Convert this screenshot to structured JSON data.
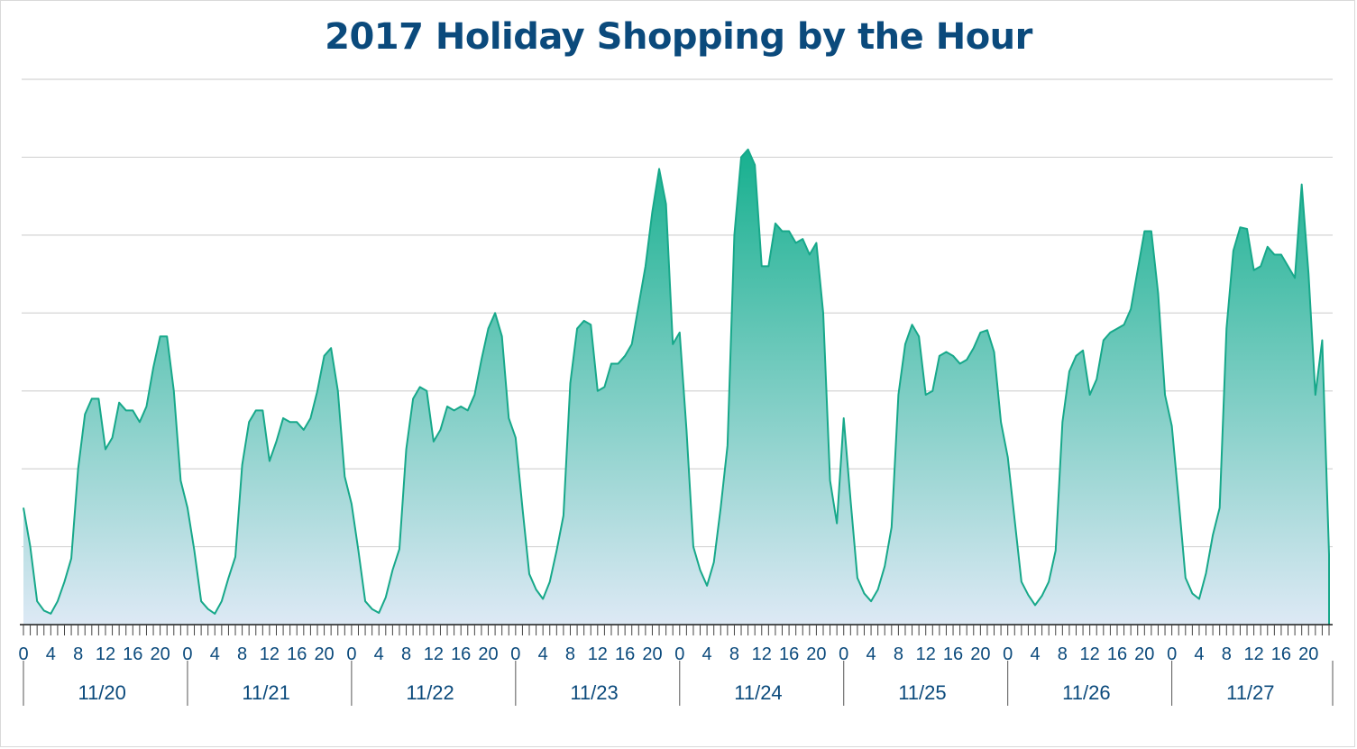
{
  "colors": {
    "title": "#0b4a7c",
    "line": "#17a88a",
    "fill_top": "#17b08f",
    "fill_bottom": "#dde9f5",
    "grid": "#d4d4d4",
    "axis": "#1a1a1a"
  },
  "chart_data": {
    "type": "area",
    "title": "2017 Holiday Shopping by the Hour",
    "xlabel": "",
    "ylabel": "",
    "grid": true,
    "y_gridlines": 7,
    "hour_tick_labels": [
      "0",
      "4",
      "8",
      "12",
      "16",
      "20"
    ],
    "days": [
      "11/20",
      "11/21",
      "11/22",
      "11/23",
      "11/24",
      "11/25",
      "11/26",
      "11/27"
    ],
    "ylim": [
      0,
      7
    ],
    "values": [
      1.5,
      1.0,
      0.3,
      0.18,
      0.14,
      0.3,
      0.55,
      0.85,
      2.0,
      2.7,
      2.9,
      2.9,
      2.25,
      2.4,
      2.85,
      2.75,
      2.75,
      2.6,
      2.8,
      3.3,
      3.7,
      3.7,
      3.0,
      1.85,
      1.5,
      0.95,
      0.3,
      0.2,
      0.14,
      0.3,
      0.6,
      0.87,
      2.05,
      2.6,
      2.75,
      2.75,
      2.1,
      2.35,
      2.65,
      2.6,
      2.6,
      2.5,
      2.65,
      3.0,
      3.45,
      3.55,
      3.0,
      1.9,
      1.55,
      0.95,
      0.3,
      0.2,
      0.15,
      0.35,
      0.7,
      0.97,
      2.25,
      2.9,
      3.05,
      3.0,
      2.35,
      2.5,
      2.8,
      2.75,
      2.8,
      2.75,
      2.95,
      3.4,
      3.8,
      4.0,
      3.7,
      2.65,
      2.4,
      1.5,
      0.65,
      0.45,
      0.33,
      0.55,
      0.95,
      1.4,
      3.1,
      3.8,
      3.9,
      3.85,
      3.0,
      3.05,
      3.35,
      3.35,
      3.45,
      3.6,
      4.1,
      4.6,
      5.3,
      5.85,
      5.4,
      3.6,
      3.75,
      2.5,
      1.0,
      0.7,
      0.5,
      0.8,
      1.5,
      2.3,
      5.0,
      6.0,
      6.1,
      5.9,
      4.6,
      4.6,
      5.15,
      5.05,
      5.05,
      4.9,
      4.95,
      4.75,
      4.9,
      4.0,
      1.85,
      1.3,
      2.65,
      1.6,
      0.6,
      0.4,
      0.3,
      0.45,
      0.75,
      1.25,
      2.95,
      3.6,
      3.85,
      3.7,
      2.95,
      3.0,
      3.45,
      3.5,
      3.45,
      3.35,
      3.4,
      3.55,
      3.75,
      3.78,
      3.5,
      2.6,
      2.15,
      1.35,
      0.55,
      0.38,
      0.25,
      0.37,
      0.55,
      0.95,
      2.6,
      3.25,
      3.45,
      3.52,
      2.95,
      3.15,
      3.65,
      3.75,
      3.8,
      3.85,
      4.05,
      4.55,
      5.05,
      5.05,
      4.25,
      2.95,
      2.55,
      1.6,
      0.6,
      0.4,
      0.33,
      0.66,
      1.15,
      1.5,
      3.8,
      4.8,
      5.1,
      5.08,
      4.55,
      4.6,
      4.85,
      4.75,
      4.75,
      4.6,
      4.45,
      5.65,
      4.5,
      2.95,
      3.65,
      0.9
    ]
  }
}
